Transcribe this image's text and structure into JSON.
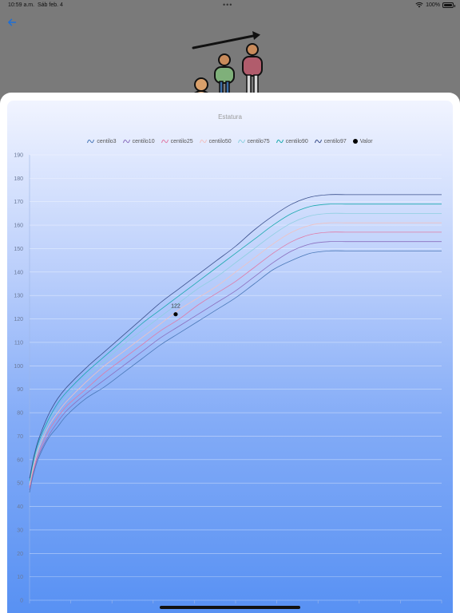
{
  "status": {
    "time": "10:59 a.m.",
    "date": "Sáb feb. 4",
    "battery": "100%",
    "battery_level": 1.0
  },
  "icons": {
    "back": "arrow-left-icon",
    "hero": "children-growth-illustration-icon",
    "wifi": "wifi-icon",
    "battery": "battery-icon"
  },
  "colors": {
    "accent": "#1d6fd8"
  },
  "chart_data": {
    "type": "line",
    "title": "Estatura",
    "xlabel": "",
    "ylabel": "",
    "ylim": [
      0,
      190
    ],
    "yticks": [
      0,
      10,
      20,
      30,
      40,
      50,
      60,
      70,
      80,
      90,
      100,
      110,
      120,
      130,
      140,
      150,
      160,
      170,
      180,
      190
    ],
    "grid": true,
    "legend": "top-center",
    "x": [
      0,
      0.1,
      0.25,
      0.5,
      1,
      1.5,
      2,
      3,
      4,
      5,
      6,
      7,
      8,
      9,
      10,
      11,
      12,
      13,
      14,
      15,
      16,
      17,
      18,
      19,
      20,
      21,
      22
    ],
    "series": [
      {
        "name": "centilo3",
        "color": "#4a78b8",
        "values": [
          46,
          50,
          55,
          61,
          69,
          74,
          79,
          86,
          91,
          97,
          103,
          109,
          114,
          119,
          124,
          129,
          135,
          141,
          145,
          148,
          149,
          149,
          149,
          149,
          149,
          149,
          149
        ]
      },
      {
        "name": "centilo10",
        "color": "#8a6fbf",
        "values": [
          47,
          51,
          56,
          62,
          70,
          76,
          81,
          88,
          94,
          100,
          106,
          112,
          117,
          122,
          127,
          132,
          138,
          144,
          149,
          152,
          153,
          153,
          153,
          153,
          153,
          153,
          153
        ]
      },
      {
        "name": "centilo25",
        "color": "#e07aa6",
        "values": [
          48,
          52,
          57,
          63,
          72,
          78,
          83,
          90,
          97,
          103,
          109,
          115,
          120,
          126,
          131,
          136,
          142,
          148,
          153,
          156,
          157,
          157,
          157,
          157,
          157,
          157,
          157
        ]
      },
      {
        "name": "centilo50",
        "color": "#f0c2c2",
        "values": [
          49,
          53,
          58,
          65,
          74,
          80,
          85,
          93,
          100,
          106,
          112,
          118,
          124,
          129,
          134,
          140,
          146,
          152,
          157,
          160,
          161,
          161,
          161,
          161,
          161,
          161,
          161
        ]
      },
      {
        "name": "centilo75",
        "color": "#8ecfe0",
        "values": [
          50,
          54,
          60,
          66,
          76,
          82,
          87,
          95,
          102,
          109,
          115,
          121,
          127,
          133,
          138,
          144,
          150,
          156,
          161,
          164,
          165,
          165,
          165,
          165,
          165,
          165,
          165
        ]
      },
      {
        "name": "centilo90",
        "color": "#1aa9ae",
        "values": [
          51,
          55,
          61,
          68,
          77,
          84,
          89,
          97,
          104,
          111,
          118,
          124,
          130,
          136,
          142,
          148,
          154,
          160,
          165,
          168,
          169,
          169,
          169,
          169,
          169,
          169,
          169
        ]
      },
      {
        "name": "centilo97",
        "color": "#3a4f8c",
        "values": [
          52,
          56,
          62,
          69,
          79,
          86,
          91,
          99,
          106,
          113,
          120,
          127,
          133,
          139,
          145,
          151,
          158,
          164,
          169,
          172,
          173,
          173,
          173,
          173,
          173,
          173,
          173
        ]
      }
    ],
    "value_point": {
      "name": "Valor",
      "x": 7.8,
      "y": 122,
      "label": "122",
      "color": "#000000"
    }
  }
}
